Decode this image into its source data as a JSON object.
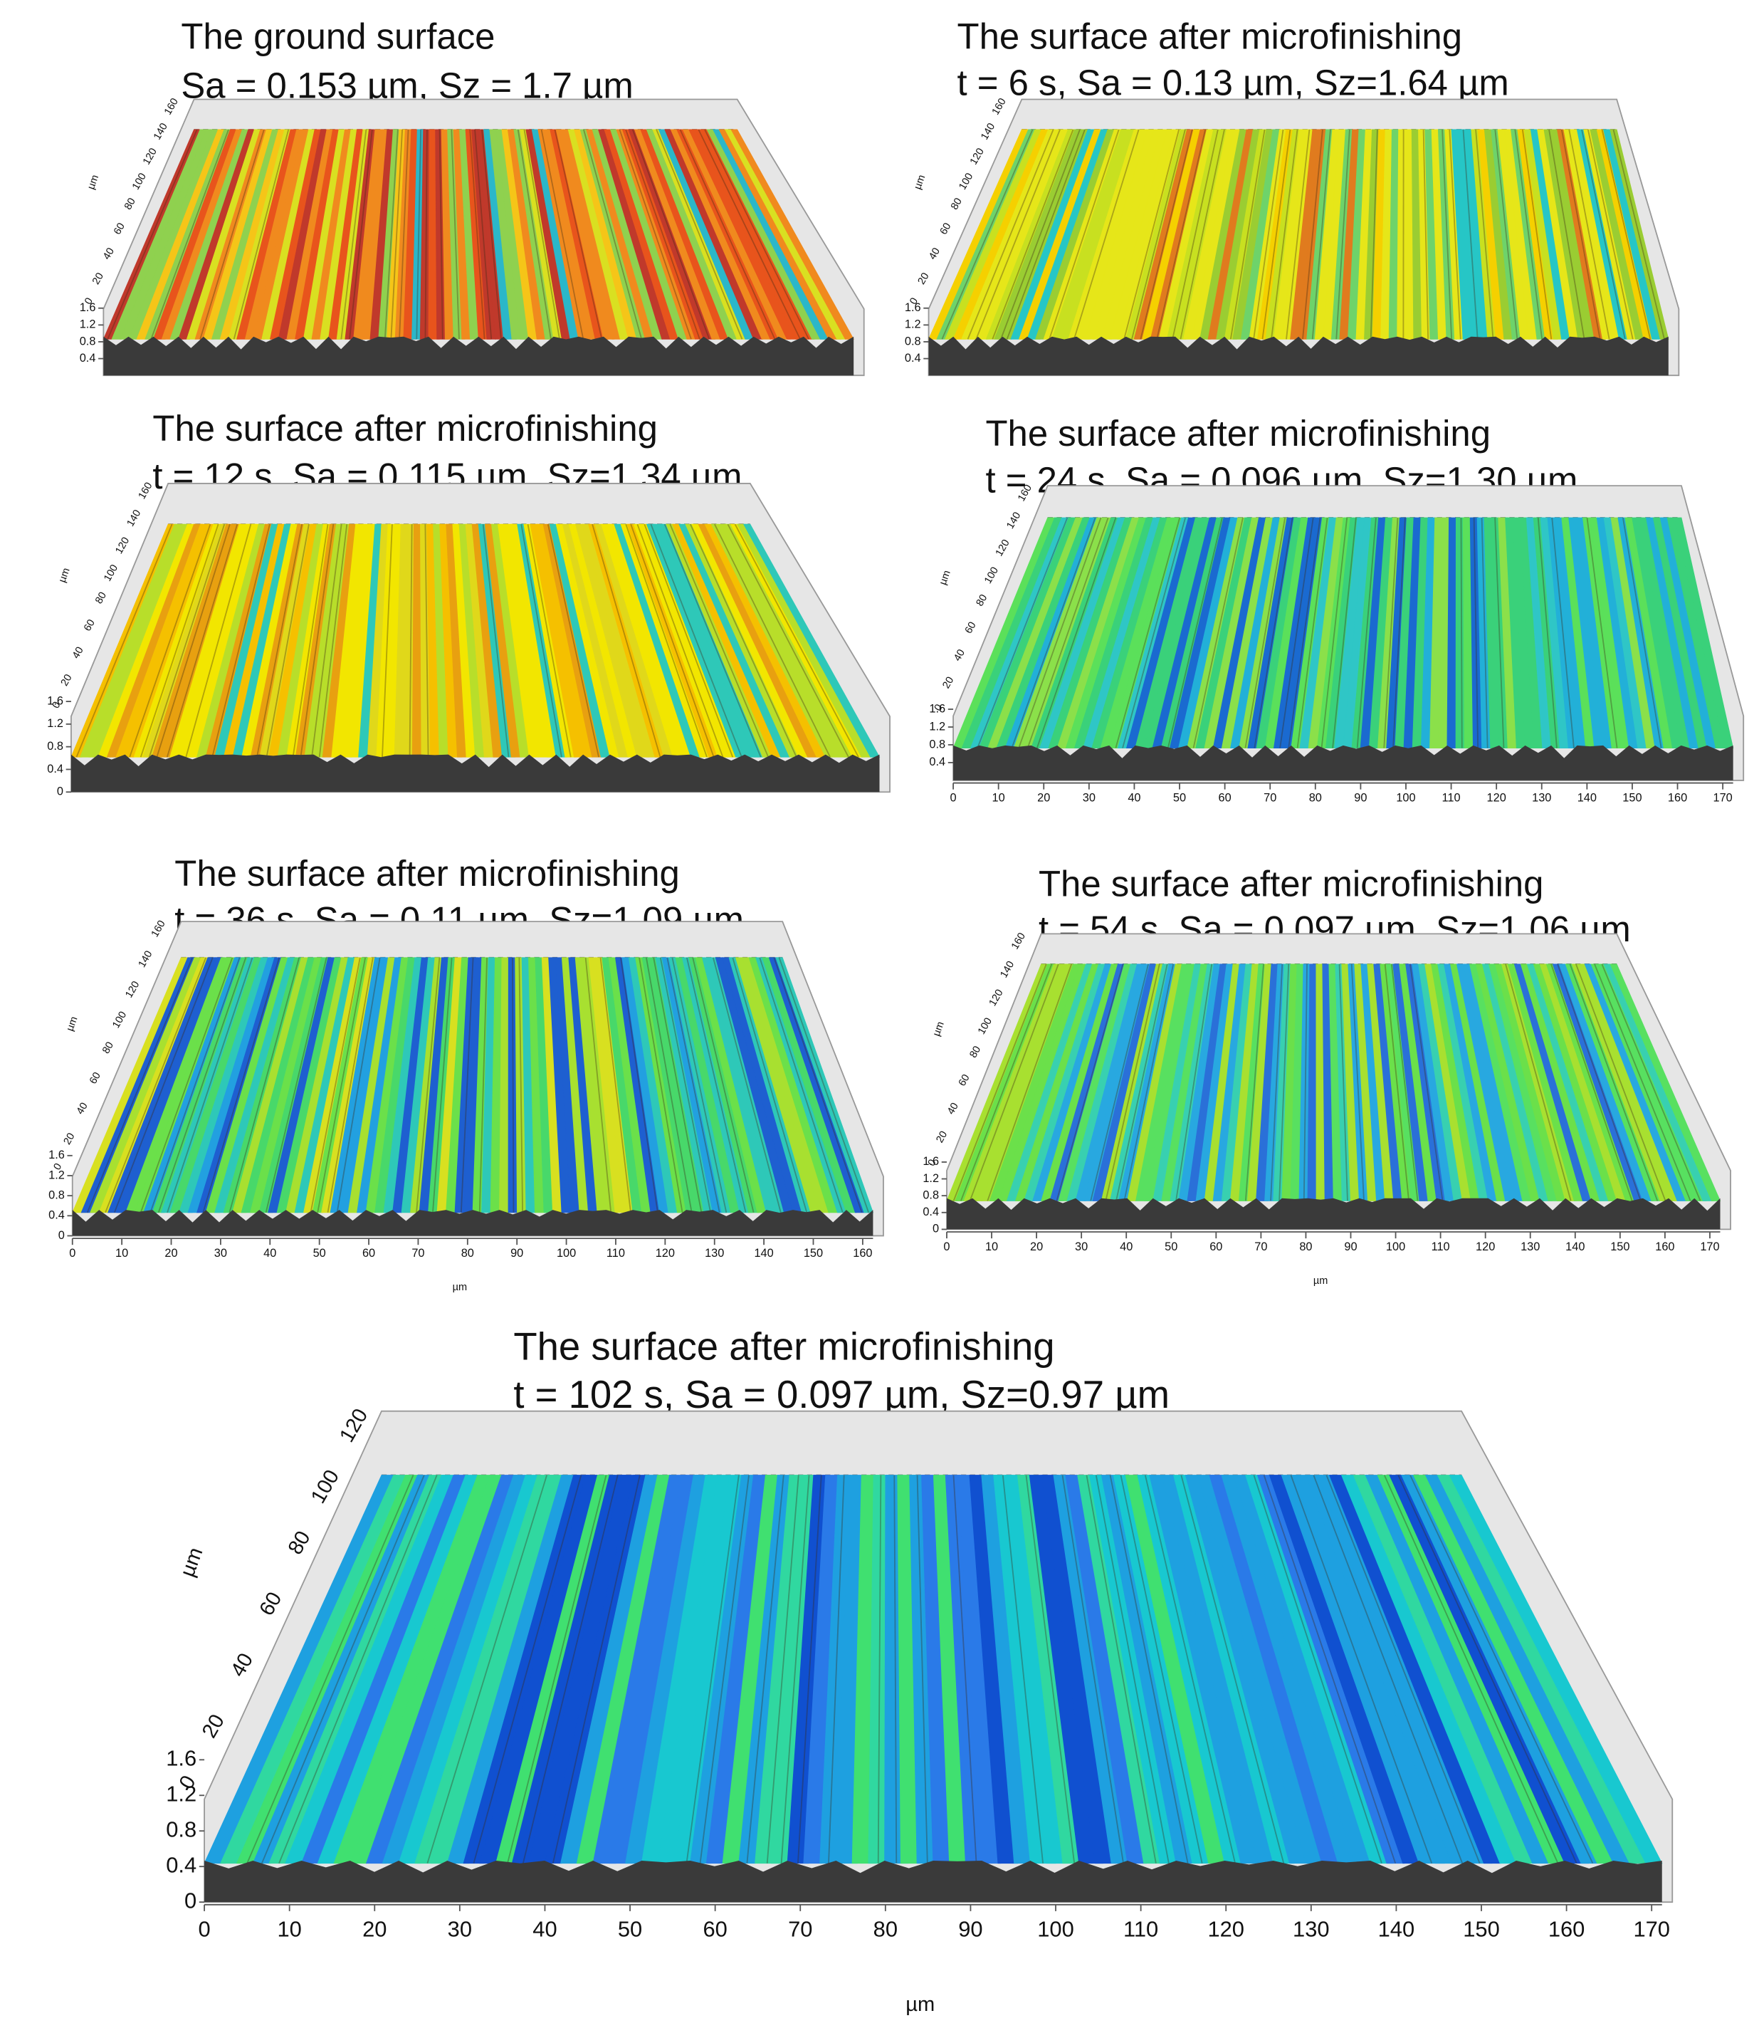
{
  "panels": [
    {
      "title_lines": [
        "The ground surface",
        "Sa = 0.153 µm, Sz = 1.7 µm"
      ],
      "depth_ticks": [
        0,
        20,
        40,
        60,
        80,
        100,
        120,
        140,
        160
      ],
      "height_ticks": [
        0.4,
        0.8,
        1.2,
        1.6
      ],
      "depth_label": "µm",
      "colors": [
        "#e8541c",
        "#f08a1e",
        "#f5c518",
        "#d9e021",
        "#e8541c",
        "#f08a1e",
        "#8fd14f",
        "#2bb7c9",
        "#c0392b"
      ]
    },
    {
      "title_lines": [
        "The surface after microfinishing",
        "t = 6 s, Sa = 0.13 µm, Sz=1.64 µm"
      ],
      "depth_ticks": [
        0,
        20,
        40,
        60,
        80,
        100,
        120,
        140,
        160
      ],
      "height_ticks": [
        0.4,
        0.8,
        1.2,
        1.6
      ],
      "depth_label": "µm",
      "colors": [
        "#e6e619",
        "#c8e020",
        "#f5d000",
        "#6ed36a",
        "#26c6c6",
        "#9acd32",
        "#e6e619",
        "#e07b1e"
      ]
    },
    {
      "title_lines": [
        "The surface after microfinishing",
        "t = 12 s, Sa = 0.115 µm, Sz=1.34 µm"
      ],
      "depth_ticks": [
        0,
        20,
        40,
        60,
        80,
        100,
        120,
        140,
        160
      ],
      "height_ticks": [
        0,
        0.4,
        0.8,
        1.2,
        1.6
      ],
      "depth_label": "µm",
      "colors": [
        "#f2e600",
        "#e0d81a",
        "#f5c000",
        "#b8de2a",
        "#2ec8b8",
        "#e8a010",
        "#f2e600"
      ]
    },
    {
      "title_lines": [
        "The surface after microfinishing",
        "t = 24 s, Sa = 0.096 µm, Sz=1.30 µm"
      ],
      "depth_ticks": [
        0,
        20,
        40,
        60,
        80,
        100,
        120,
        140,
        160
      ],
      "height_ticks": [
        0.4,
        0.8,
        1.2,
        1.6
      ],
      "x_ticks": [
        0,
        10,
        20,
        30,
        40,
        50,
        60,
        70,
        80,
        90,
        100,
        110,
        120,
        130,
        140,
        150,
        160,
        170
      ],
      "depth_label": "µm",
      "colors": [
        "#3ad17a",
        "#2fc6c6",
        "#5be05a",
        "#22b0d8",
        "#8be04a",
        "#1a6ad0",
        "#3ad17a"
      ]
    },
    {
      "title_lines": [
        "The surface after microfinishing",
        "t = 36 s, Sa = 0.11 µm, Sz=1.09 µm"
      ],
      "depth_ticks": [
        0,
        20,
        40,
        60,
        80,
        100,
        120,
        140,
        160
      ],
      "height_ticks": [
        0,
        0.4,
        0.8,
        1.2,
        1.6
      ],
      "x_ticks": [
        0,
        10,
        20,
        30,
        40,
        50,
        60,
        70,
        80,
        90,
        100,
        110,
        120,
        130,
        140,
        150,
        160
      ],
      "depth_label": "µm",
      "x_label": "µm",
      "colors": [
        "#6be04a",
        "#2ec8b8",
        "#a8e030",
        "#22a0e0",
        "#48d86a",
        "#1e5fd0",
        "#d8e020"
      ]
    },
    {
      "title_lines": [
        "The surface after microfinishing",
        "t = 54 s, Sa = 0.097 µm, Sz=1.06 µm"
      ],
      "depth_ticks": [
        0,
        20,
        40,
        60,
        80,
        100,
        120,
        140,
        160
      ],
      "height_ticks": [
        0,
        0.4,
        0.8,
        1.2,
        1.6
      ],
      "x_ticks": [
        0,
        10,
        20,
        30,
        40,
        50,
        60,
        70,
        80,
        90,
        100,
        110,
        120,
        130,
        140,
        150,
        160,
        170
      ],
      "depth_label": "µm",
      "x_label": "µm",
      "colors": [
        "#6be04a",
        "#38d0b0",
        "#a8e030",
        "#28a8e0",
        "#58e060",
        "#2a70d8"
      ]
    },
    {
      "title_lines": [
        "The surface after microfinishing",
        "t = 102 s, Sa = 0.097 µm, Sz=0.97 µm"
      ],
      "depth_ticks": [
        0,
        20,
        40,
        60,
        80,
        100,
        120
      ],
      "height_ticks": [
        0,
        0.4,
        0.8,
        1.2,
        1.6
      ],
      "x_ticks": [
        0,
        10,
        20,
        30,
        40,
        50,
        60,
        70,
        80,
        90,
        100,
        110,
        120,
        130,
        140,
        150,
        160,
        170
      ],
      "depth_label": "µm",
      "x_label": "µm",
      "colors": [
        "#1ea0e0",
        "#18c8d0",
        "#2a7ae8",
        "#30d8a0",
        "#1050d0",
        "#40e070",
        "#1ea0e0"
      ]
    }
  ]
}
